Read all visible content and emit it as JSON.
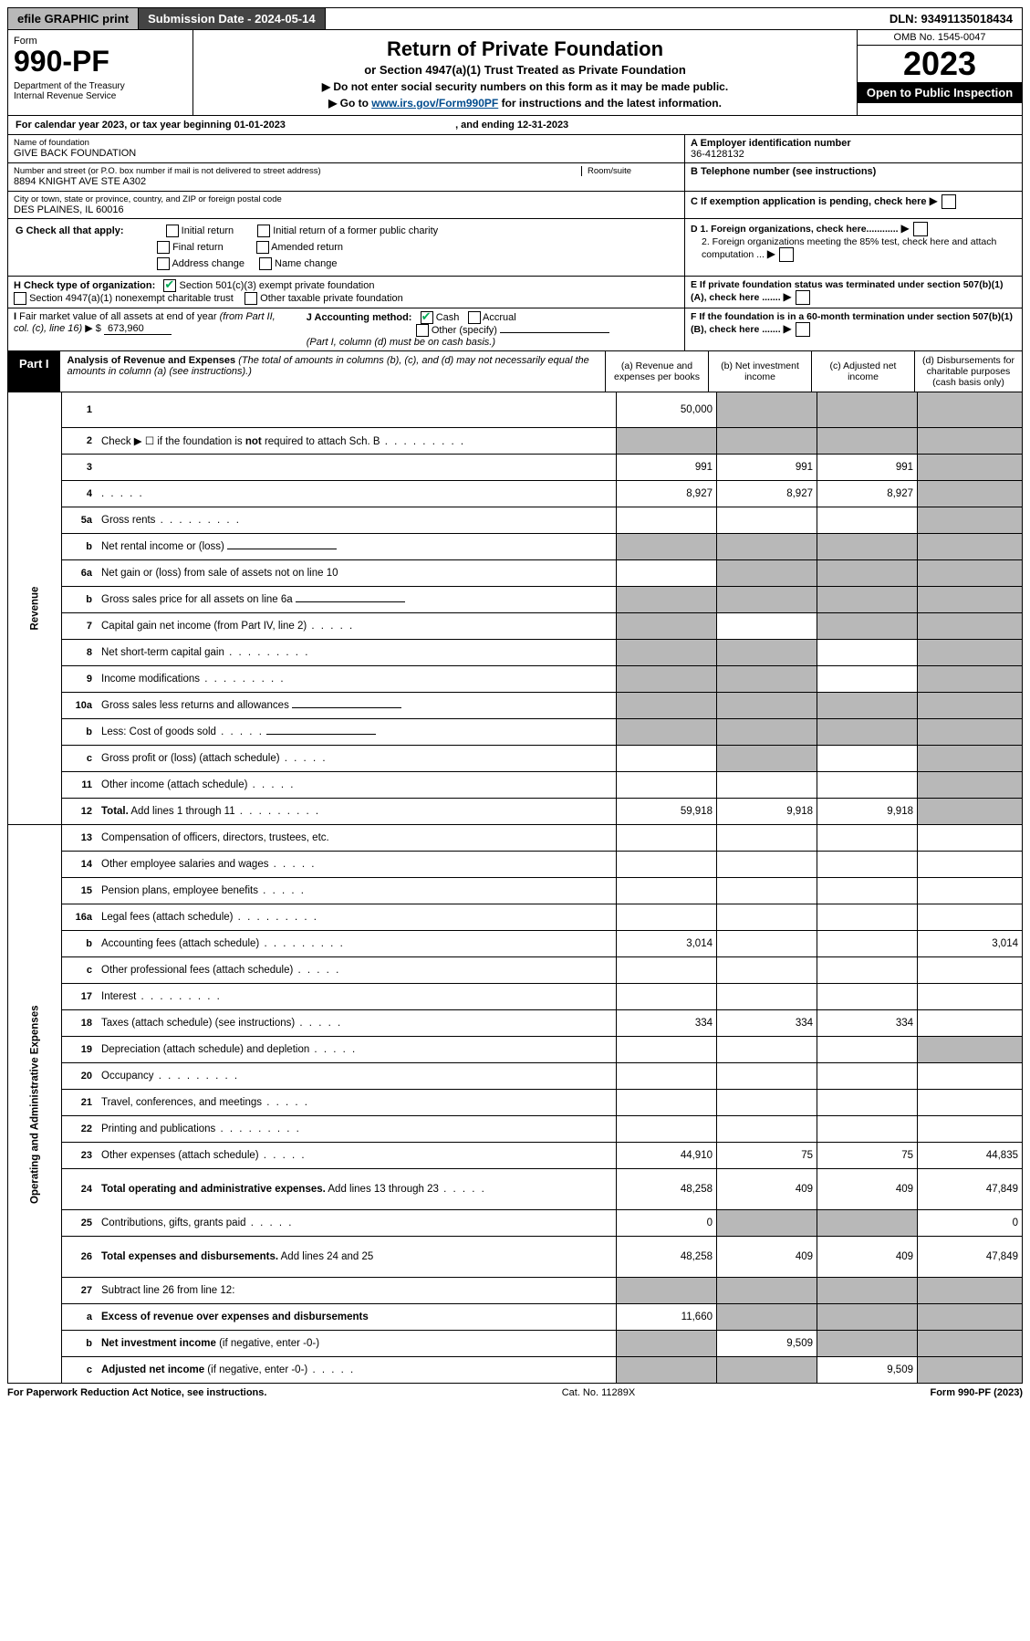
{
  "top": {
    "efile_btn": "efile GRAPHIC print",
    "submission": "Submission Date - 2024-05-14",
    "dln": "DLN: 93491135018434"
  },
  "header": {
    "form_word": "Form",
    "form_num": "990-PF",
    "dept": "Department of the Treasury\nInternal Revenue Service",
    "title": "Return of Private Foundation",
    "subtitle": "or Section 4947(a)(1) Trust Treated as Private Foundation",
    "note1": "▶ Do not enter social security numbers on this form as it may be made public.",
    "note2_pre": "▶ Go to ",
    "note2_link": "www.irs.gov/Form990PF",
    "note2_post": " for instructions and the latest information.",
    "omb": "OMB No. 1545-0047",
    "year": "2023",
    "open": "Open to Public Inspection"
  },
  "cal": {
    "text_pre": "For calendar year 2023, or tax year beginning ",
    "begin": "01-01-2023",
    "mid": " , and ending ",
    "end": "12-31-2023"
  },
  "ident": {
    "name_label": "Name of foundation",
    "name": "GIVE BACK FOUNDATION",
    "addr_label": "Number and street (or P.O. box number if mail is not delivered to street address)",
    "addr": "8894 KNIGHT AVE STE A302",
    "room_label": "Room/suite",
    "city_label": "City or town, state or province, country, and ZIP or foreign postal code",
    "city": "DES PLAINES, IL  60016",
    "ein_label": "A Employer identification number",
    "ein": "36-4128132",
    "phone_label": "B Telephone number (see instructions)",
    "c_label": "C If exemption application is pending, check here",
    "d1": "D 1. Foreign organizations, check here............",
    "d2": "2. Foreign organizations meeting the 85% test, check here and attach computation ...",
    "e_label": "E  If private foundation status was terminated under section 507(b)(1)(A), check here .......",
    "f_label": "F  If the foundation is in a 60-month termination under section 507(b)(1)(B), check here .......",
    "g_label": "G Check all that apply:",
    "g_opts": [
      "Initial return",
      "Initial return of a former public charity",
      "Final return",
      "Amended return",
      "Address change",
      "Name change"
    ],
    "h_label": "H Check type of organization:",
    "h_opt1": "Section 501(c)(3) exempt private foundation",
    "h_opt2": "Section 4947(a)(1) nonexempt charitable trust",
    "h_opt3": "Other taxable private foundation",
    "i_label": "I Fair market value of all assets at end of year (from Part II, col. (c), line 16) ▶ $ ",
    "i_val": "673,960",
    "j_label": "J Accounting method:",
    "j_cash": "Cash",
    "j_accrual": "Accrual",
    "j_other": "Other (specify)",
    "j_note": "(Part I, column (d) must be on cash basis.)"
  },
  "part1": {
    "badge": "Part I",
    "title": "Analysis of Revenue and Expenses",
    "title_note": " (The total of amounts in columns (b), (c), and (d) may not necessarily equal the amounts in column (a) (see instructions).)",
    "cols": {
      "a": "(a)   Revenue and expenses per books",
      "b": "(b)   Net investment income",
      "c": "(c)   Adjusted net income",
      "d": "(d)   Disbursements for charitable purposes (cash basis only)"
    }
  },
  "side": {
    "rev": "Revenue",
    "exp": "Operating and Administrative Expenses"
  },
  "rows": [
    {
      "n": "1",
      "d": "",
      "a": "50,000",
      "b": "",
      "c": "",
      "grey": [
        "b",
        "c",
        "d"
      ]
    },
    {
      "n": "2",
      "d": "Check ▶ ☐ if the foundation is <b>not</b> required to attach Sch. B",
      "dots": true,
      "nocells": true,
      "grey": [
        "a",
        "b",
        "c",
        "d"
      ]
    },
    {
      "n": "3",
      "d": "",
      "a": "991",
      "b": "991",
      "c": "991",
      "grey": [
        "d"
      ]
    },
    {
      "n": "4",
      "d": "",
      "dots": "s",
      "a": "8,927",
      "b": "8,927",
      "c": "8,927",
      "grey": [
        "d"
      ]
    },
    {
      "n": "5a",
      "d": "Gross rents",
      "dots": true,
      "grey": [
        "d"
      ]
    },
    {
      "n": "b",
      "d": "Net rental income or (loss)",
      "inline": true,
      "grey": [
        "a",
        "b",
        "c",
        "d"
      ]
    },
    {
      "n": "6a",
      "d": "Net gain or (loss) from sale of assets not on line 10",
      "grey": [
        "b",
        "c",
        "d"
      ]
    },
    {
      "n": "b",
      "d": "Gross sales price for all assets on line 6a",
      "inline": true,
      "grey": [
        "a",
        "b",
        "c",
        "d"
      ]
    },
    {
      "n": "7",
      "d": "Capital gain net income (from Part IV, line 2)",
      "dots": "s",
      "grey": [
        "a",
        "c",
        "d"
      ]
    },
    {
      "n": "8",
      "d": "Net short-term capital gain",
      "dots": true,
      "grey": [
        "a",
        "b",
        "d"
      ]
    },
    {
      "n": "9",
      "d": "Income modifications",
      "dots": true,
      "grey": [
        "a",
        "b",
        "d"
      ]
    },
    {
      "n": "10a",
      "d": "Gross sales less returns and allowances",
      "inline": true,
      "grey": [
        "a",
        "b",
        "c",
        "d"
      ]
    },
    {
      "n": "b",
      "d": "Less: Cost of goods sold",
      "dots": "s",
      "inline": true,
      "grey": [
        "a",
        "b",
        "c",
        "d"
      ]
    },
    {
      "n": "c",
      "d": "Gross profit or (loss) (attach schedule)",
      "dots": "s",
      "grey": [
        "b",
        "d"
      ]
    },
    {
      "n": "11",
      "d": "Other income (attach schedule)",
      "dots": "s",
      "grey": [
        "d"
      ]
    },
    {
      "n": "12",
      "d": "<b>Total.</b> Add lines 1 through 11",
      "dots": true,
      "a": "59,918",
      "b": "9,918",
      "c": "9,918",
      "grey": [
        "d"
      ]
    }
  ],
  "exp_rows": [
    {
      "n": "13",
      "d": "Compensation of officers, directors, trustees, etc."
    },
    {
      "n": "14",
      "d": "Other employee salaries and wages",
      "dots": "s"
    },
    {
      "n": "15",
      "d": "Pension plans, employee benefits",
      "dots": "s"
    },
    {
      "n": "16a",
      "d": "Legal fees (attach schedule)",
      "dots": true
    },
    {
      "n": "b",
      "d": "Accounting fees (attach schedule)",
      "dots": true,
      "a": "3,014",
      "d_": "3,014"
    },
    {
      "n": "c",
      "d": "Other professional fees (attach schedule)",
      "dots": "s"
    },
    {
      "n": "17",
      "d": "Interest",
      "dots": true
    },
    {
      "n": "18",
      "d": "Taxes (attach schedule) (see instructions)",
      "dots": "s",
      "a": "334",
      "b": "334",
      "c": "334"
    },
    {
      "n": "19",
      "d": "Depreciation (attach schedule) and depletion",
      "dots": "s",
      "grey": [
        "d"
      ]
    },
    {
      "n": "20",
      "d": "Occupancy",
      "dots": true
    },
    {
      "n": "21",
      "d": "Travel, conferences, and meetings",
      "dots": "s"
    },
    {
      "n": "22",
      "d": "Printing and publications",
      "dots": true
    },
    {
      "n": "23",
      "d": "Other expenses (attach schedule)",
      "dots": "s",
      "a": "44,910",
      "b": "75",
      "c": "75",
      "d_": "44,835"
    },
    {
      "n": "24",
      "d": "<b>Total operating and administrative expenses.</b> Add lines 13 through 23",
      "dots": "s",
      "a": "48,258",
      "b": "409",
      "c": "409",
      "d_": "47,849",
      "tall": true
    },
    {
      "n": "25",
      "d": "Contributions, gifts, grants paid",
      "dots": "s",
      "a": "0",
      "d_": "0",
      "grey": [
        "b",
        "c"
      ]
    },
    {
      "n": "26",
      "d": "<b>Total expenses and disbursements.</b> Add lines 24 and 25",
      "a": "48,258",
      "b": "409",
      "c": "409",
      "d_": "47,849",
      "tall": true
    },
    {
      "n": "27",
      "d": "Subtract line 26 from line 12:",
      "grey": [
        "a",
        "b",
        "c",
        "d"
      ],
      "noborder_cells": true
    },
    {
      "n": "a",
      "d": "<b>Excess of revenue over expenses and disbursements</b>",
      "a": "11,660",
      "grey": [
        "b",
        "c",
        "d"
      ]
    },
    {
      "n": "b",
      "d": "<b>Net investment income</b> (if negative, enter -0-)",
      "b": "9,509",
      "grey": [
        "a",
        "c",
        "d"
      ]
    },
    {
      "n": "c",
      "d": "<b>Adjusted net income</b> (if negative, enter -0-)",
      "dots": "s",
      "c": "9,509",
      "grey": [
        "a",
        "b",
        "d"
      ]
    }
  ],
  "footer": {
    "left": "For Paperwork Reduction Act Notice, see instructions.",
    "mid": "Cat. No. 11289X",
    "right": "Form 990-PF (2023)"
  }
}
